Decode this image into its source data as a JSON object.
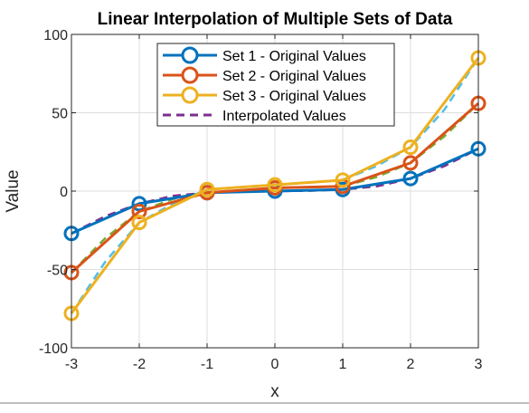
{
  "chart_data": {
    "type": "line",
    "title": "Linear Interpolation of Multiple Sets of Data",
    "xlabel": "x",
    "ylabel": "Value",
    "xlim": [
      -3,
      3
    ],
    "ylim": [
      -100,
      100
    ],
    "xticks": [
      -3,
      -2,
      -1,
      0,
      1,
      2,
      3
    ],
    "yticks": [
      -100,
      -50,
      0,
      50,
      100
    ],
    "x": [
      -3,
      -2,
      -1,
      0,
      1,
      2,
      3
    ],
    "grid": true,
    "legend_position": "top-center",
    "series": [
      {
        "name": "Set 1 - Original Values",
        "values": [
          -27,
          -8,
          -1,
          0,
          1,
          8,
          27
        ],
        "color": "#0072BD",
        "marker": "circle",
        "style": "solid"
      },
      {
        "name": "Set 2 - Original Values",
        "values": [
          -52,
          -13,
          -1,
          2,
          3,
          18,
          56
        ],
        "color": "#D95319",
        "marker": "circle",
        "style": "solid"
      },
      {
        "name": "Set 3 - Original Values",
        "values": [
          -78,
          -20,
          1,
          4,
          7,
          28,
          85
        ],
        "color": "#EDB120",
        "marker": "circle",
        "style": "solid"
      }
    ],
    "interpolated": {
      "legend_label": "Interpolated Values",
      "legend_color": "#7E2F8E",
      "style": "dashed",
      "x": [
        -3,
        -2.5,
        -2,
        -1.5,
        -1,
        -0.5,
        0,
        0.5,
        1,
        1.5,
        2,
        2.5,
        3
      ],
      "curves": [
        {
          "color": "#7E2F8E",
          "values": [
            -27,
            -16,
            -8,
            -3,
            -1,
            -0.2,
            0,
            0.2,
            1,
            3,
            8,
            16,
            27
          ]
        },
        {
          "color": "#77AC30",
          "values": [
            -52,
            -30,
            -13,
            -5,
            -1,
            0.5,
            2,
            2.5,
            3,
            9,
            18,
            35,
            56
          ]
        },
        {
          "color": "#4DBEEE",
          "values": [
            -78,
            -45,
            -20,
            -8,
            1,
            2.5,
            4,
            5.5,
            7,
            16,
            28,
            52,
            85
          ]
        }
      ]
    }
  }
}
